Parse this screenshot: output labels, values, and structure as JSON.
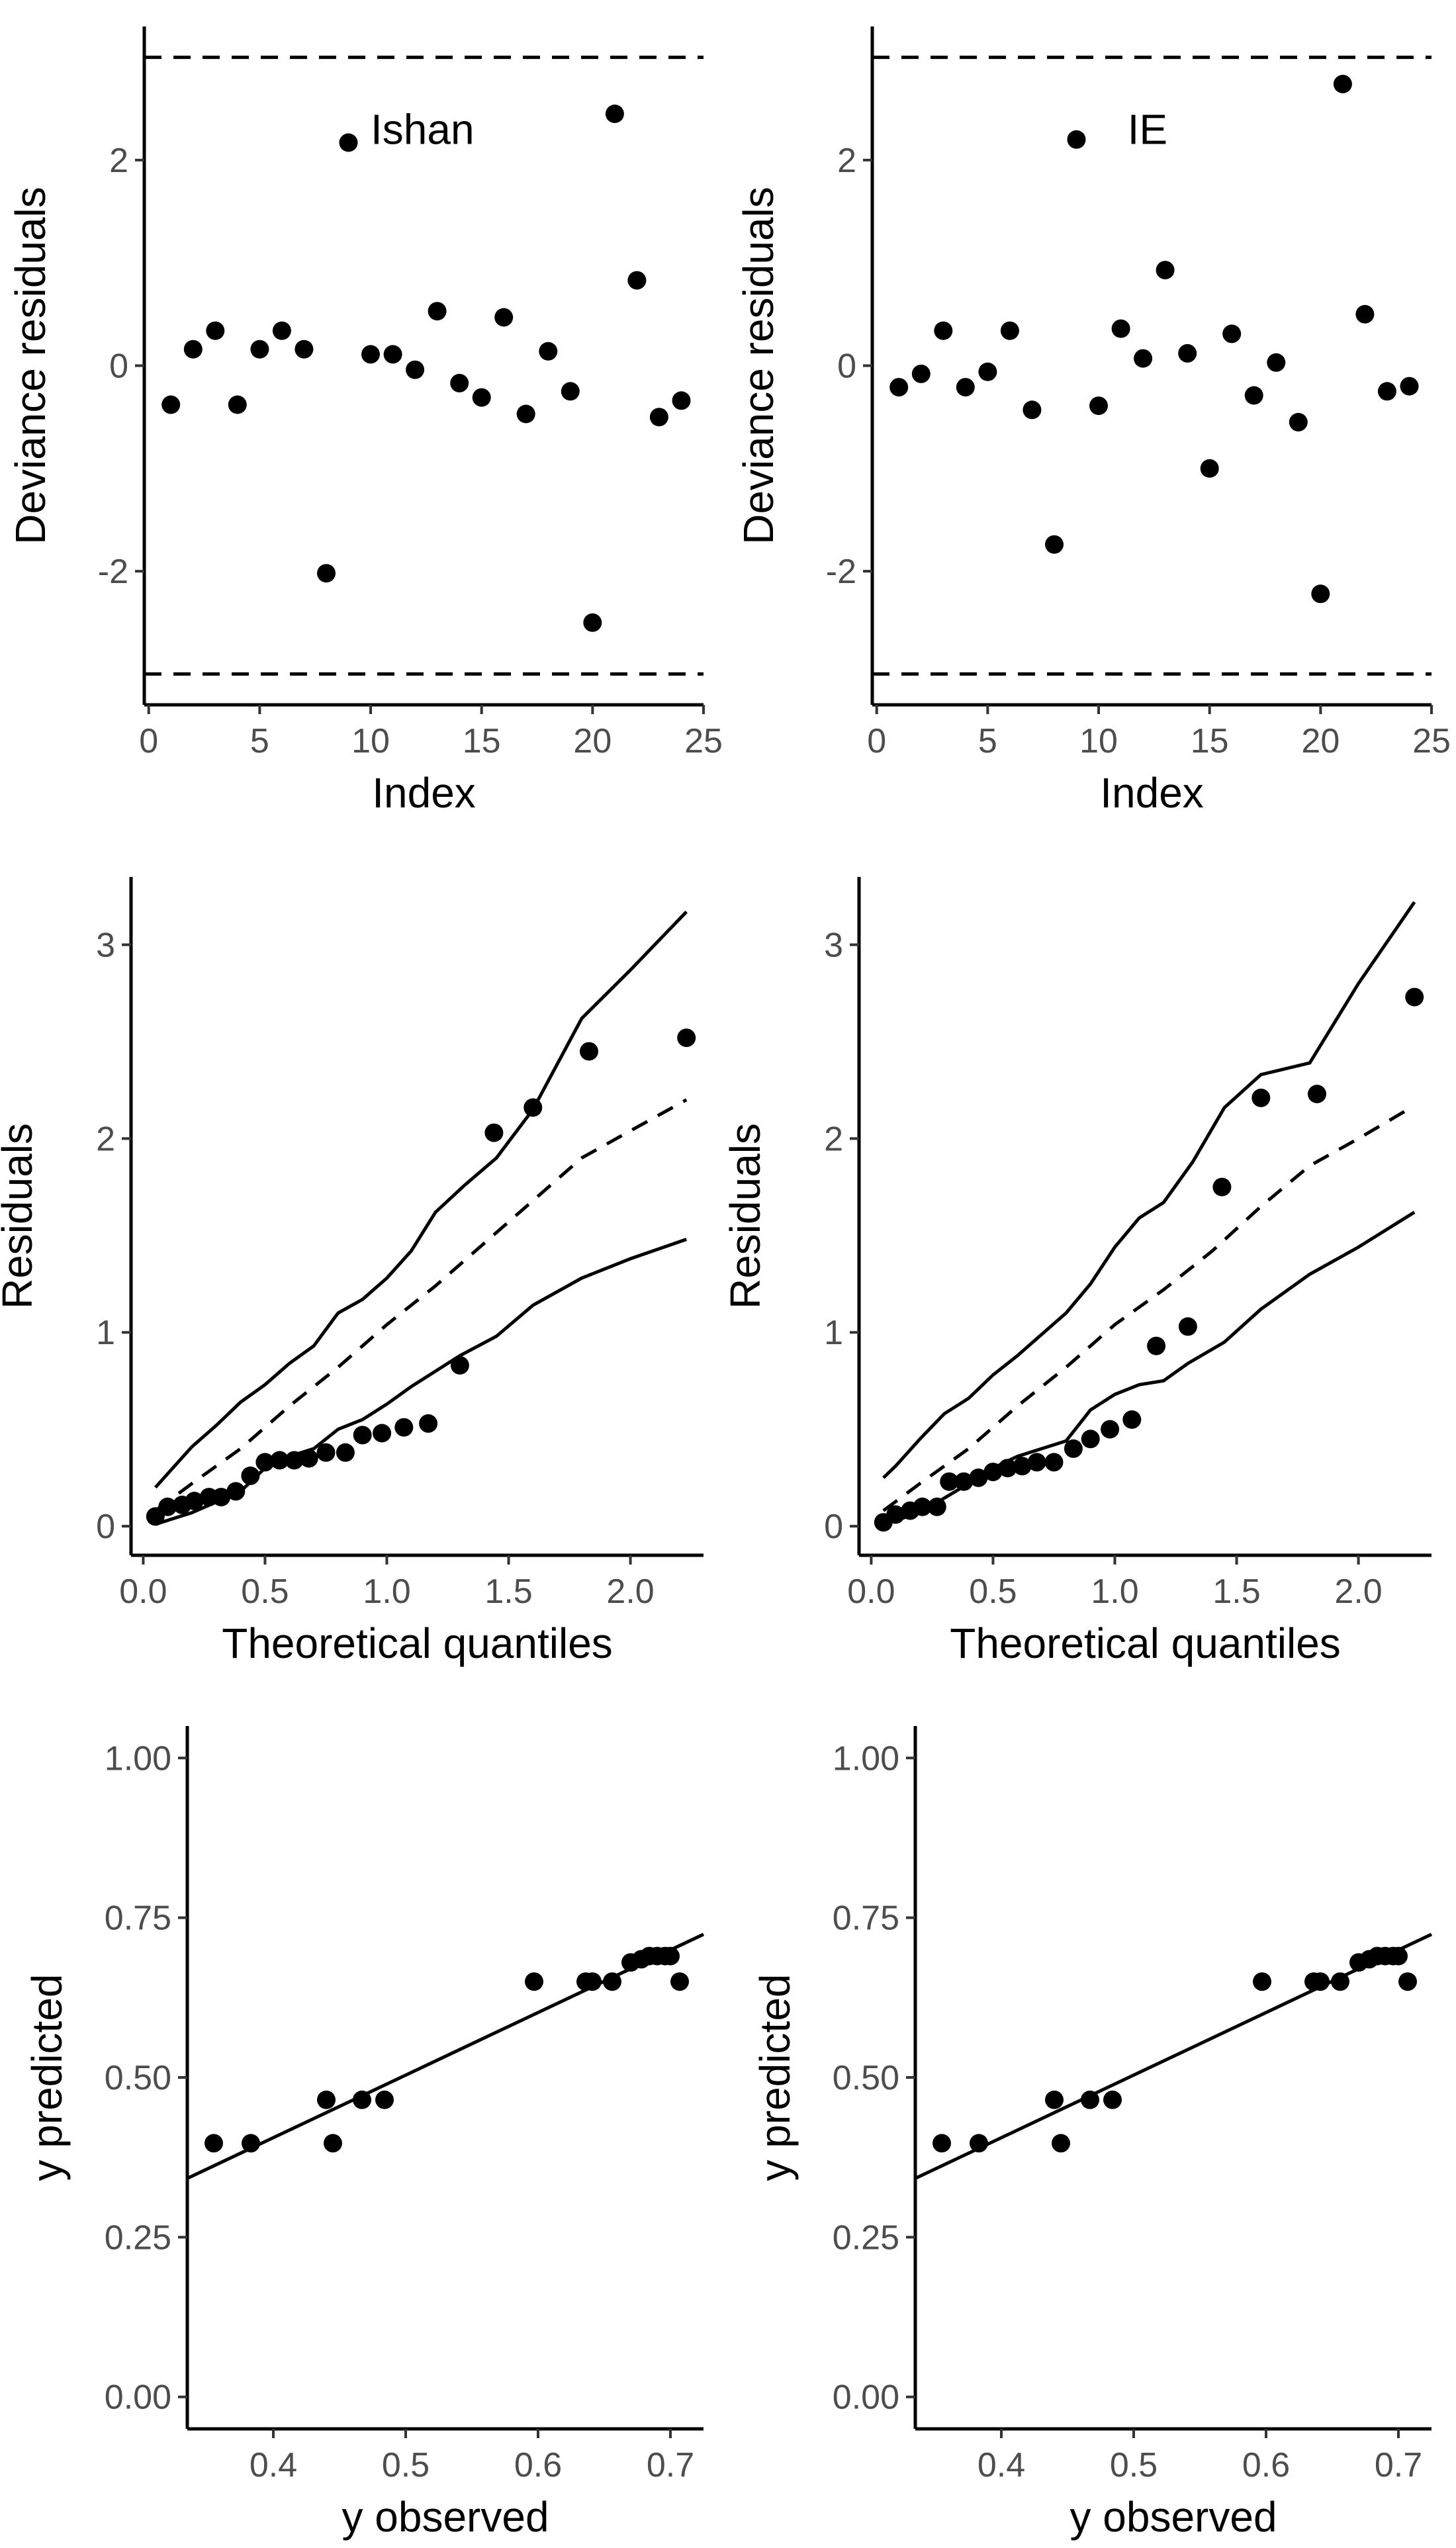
{
  "chart_data": [
    {
      "id": "p1",
      "type": "scatter",
      "xlabel": "Index",
      "ylabel": "Deviance residuals",
      "xlim": [
        -0.2,
        25
      ],
      "ylim": [
        -3.3,
        3.3
      ],
      "xticks": [
        0,
        5,
        10,
        15,
        20,
        25
      ],
      "yticks": [
        -2,
        0,
        2
      ],
      "hlines": [
        3,
        -3
      ],
      "annotation": {
        "text": "Ishan",
        "x": 10,
        "y": 2.3
      },
      "points": [
        [
          1,
          -0.38
        ],
        [
          2,
          0.16
        ],
        [
          3,
          0.34
        ],
        [
          4,
          -0.38
        ],
        [
          5,
          0.16
        ],
        [
          6,
          0.34
        ],
        [
          7,
          0.16
        ],
        [
          8,
          -2.02
        ],
        [
          9,
          2.17
        ],
        [
          10,
          0.11
        ],
        [
          11,
          0.11
        ],
        [
          12,
          -0.04
        ],
        [
          13,
          0.53
        ],
        [
          14,
          -0.17
        ],
        [
          15,
          -0.31
        ],
        [
          16,
          0.47
        ],
        [
          17,
          -0.47
        ],
        [
          18,
          0.14
        ],
        [
          19,
          -0.25
        ],
        [
          20,
          -2.5
        ],
        [
          21,
          2.45
        ],
        [
          22,
          0.83
        ],
        [
          23,
          -0.5
        ],
        [
          24,
          -0.34
        ]
      ]
    },
    {
      "id": "p2",
      "type": "scatter",
      "xlabel": "Index",
      "ylabel": "Deviance residuals",
      "xlim": [
        -0.2,
        25
      ],
      "ylim": [
        -3.3,
        3.3
      ],
      "xticks": [
        0,
        5,
        10,
        15,
        20,
        25
      ],
      "yticks": [
        -2,
        0,
        2
      ],
      "hlines": [
        3,
        -3
      ],
      "annotation": {
        "text": "IE",
        "x": 11.3,
        "y": 2.3
      },
      "points": [
        [
          1,
          -0.21
        ],
        [
          2,
          -0.08
        ],
        [
          3,
          0.34
        ],
        [
          4,
          -0.21
        ],
        [
          5,
          -0.06
        ],
        [
          6,
          0.34
        ],
        [
          7,
          -0.43
        ],
        [
          8,
          -1.74
        ],
        [
          9,
          2.2
        ],
        [
          10,
          -0.39
        ],
        [
          11,
          0.36
        ],
        [
          12,
          0.07
        ],
        [
          13,
          0.93
        ],
        [
          14,
          0.12
        ],
        [
          15,
          -1.0
        ],
        [
          16,
          0.31
        ],
        [
          17,
          -0.29
        ],
        [
          18,
          0.03
        ],
        [
          19,
          -0.55
        ],
        [
          20,
          -2.22
        ],
        [
          21,
          2.74
        ],
        [
          22,
          0.5
        ],
        [
          23,
          -0.25
        ],
        [
          24,
          -0.2
        ]
      ]
    },
    {
      "id": "p3",
      "type": "scatter",
      "xlabel": "Theoretical quantiles",
      "ylabel": "Residuals",
      "xlim": [
        -0.05,
        2.3
      ],
      "ylim": [
        -0.15,
        3.35
      ],
      "xticks": [
        0.0,
        0.5,
        1.0,
        1.5,
        2.0
      ],
      "yticks": [
        0,
        1,
        2,
        3
      ],
      "points": [
        [
          0.05,
          0.05
        ],
        [
          0.1,
          0.1
        ],
        [
          0.16,
          0.11
        ],
        [
          0.21,
          0.13
        ],
        [
          0.27,
          0.15
        ],
        [
          0.32,
          0.15
        ],
        [
          0.38,
          0.18
        ],
        [
          0.44,
          0.26
        ],
        [
          0.5,
          0.33
        ],
        [
          0.56,
          0.34
        ],
        [
          0.62,
          0.34
        ],
        [
          0.68,
          0.35
        ],
        [
          0.75,
          0.38
        ],
        [
          0.83,
          0.38
        ],
        [
          0.9,
          0.47
        ],
        [
          0.98,
          0.48
        ],
        [
          1.07,
          0.51
        ],
        [
          1.17,
          0.53
        ],
        [
          1.3,
          0.83
        ],
        [
          1.44,
          2.03
        ],
        [
          1.6,
          2.16
        ],
        [
          1.83,
          2.45
        ],
        [
          2.23,
          2.52
        ]
      ],
      "lines": [
        {
          "name": "upper",
          "style": "solid",
          "points": [
            [
              0.05,
              0.2
            ],
            [
              0.1,
              0.27
            ],
            [
              0.2,
              0.41
            ],
            [
              0.3,
              0.52
            ],
            [
              0.4,
              0.64
            ],
            [
              0.5,
              0.73
            ],
            [
              0.6,
              0.84
            ],
            [
              0.7,
              0.93
            ],
            [
              0.8,
              1.1
            ],
            [
              0.9,
              1.17
            ],
            [
              1.0,
              1.28
            ],
            [
              1.1,
              1.42
            ],
            [
              1.2,
              1.62
            ],
            [
              1.32,
              1.76
            ],
            [
              1.45,
              1.9
            ],
            [
              1.6,
              2.15
            ],
            [
              1.8,
              2.62
            ],
            [
              2.0,
              2.87
            ],
            [
              2.23,
              3.17
            ]
          ]
        },
        {
          "name": "median",
          "style": "dashed",
          "points": [
            [
              0.05,
              0.08
            ],
            [
              0.2,
              0.22
            ],
            [
              0.4,
              0.4
            ],
            [
              0.6,
              0.62
            ],
            [
              0.8,
              0.82
            ],
            [
              1.0,
              1.04
            ],
            [
              1.2,
              1.24
            ],
            [
              1.4,
              1.46
            ],
            [
              1.6,
              1.68
            ],
            [
              1.8,
              1.9
            ],
            [
              2.0,
              2.04
            ],
            [
              2.23,
              2.2
            ]
          ]
        },
        {
          "name": "lower",
          "style": "solid",
          "points": [
            [
              0.05,
              0.01
            ],
            [
              0.2,
              0.07
            ],
            [
              0.4,
              0.18
            ],
            [
              0.5,
              0.3
            ],
            [
              0.6,
              0.36
            ],
            [
              0.7,
              0.4
            ],
            [
              0.8,
              0.5
            ],
            [
              0.9,
              0.55
            ],
            [
              1.0,
              0.63
            ],
            [
              1.1,
              0.72
            ],
            [
              1.2,
              0.8
            ],
            [
              1.3,
              0.88
            ],
            [
              1.45,
              0.98
            ],
            [
              1.6,
              1.14
            ],
            [
              1.8,
              1.28
            ],
            [
              2.0,
              1.38
            ],
            [
              2.23,
              1.48
            ]
          ]
        }
      ]
    },
    {
      "id": "p4",
      "type": "scatter",
      "xlabel": "Theoretical quantiles",
      "ylabel": "Residuals",
      "xlim": [
        -0.05,
        2.3
      ],
      "ylim": [
        -0.15,
        3.35
      ],
      "xticks": [
        0.0,
        0.5,
        1.0,
        1.5,
        2.0
      ],
      "yticks": [
        0,
        1,
        2,
        3
      ],
      "points": [
        [
          0.05,
          0.02
        ],
        [
          0.1,
          0.06
        ],
        [
          0.16,
          0.08
        ],
        [
          0.21,
          0.1
        ],
        [
          0.27,
          0.1
        ],
        [
          0.32,
          0.23
        ],
        [
          0.38,
          0.23
        ],
        [
          0.44,
          0.25
        ],
        [
          0.5,
          0.28
        ],
        [
          0.56,
          0.3
        ],
        [
          0.62,
          0.31
        ],
        [
          0.68,
          0.33
        ],
        [
          0.75,
          0.33
        ],
        [
          0.83,
          0.4
        ],
        [
          0.9,
          0.45
        ],
        [
          0.98,
          0.5
        ],
        [
          1.07,
          0.55
        ],
        [
          1.17,
          0.93
        ],
        [
          1.3,
          1.03
        ],
        [
          1.44,
          1.75
        ],
        [
          1.6,
          2.21
        ],
        [
          1.83,
          2.23
        ],
        [
          2.23,
          2.73
        ]
      ],
      "lines": [
        {
          "name": "upper",
          "style": "solid",
          "points": [
            [
              0.05,
              0.25
            ],
            [
              0.1,
              0.31
            ],
            [
              0.2,
              0.45
            ],
            [
              0.3,
              0.58
            ],
            [
              0.4,
              0.66
            ],
            [
              0.5,
              0.78
            ],
            [
              0.6,
              0.88
            ],
            [
              0.7,
              0.99
            ],
            [
              0.8,
              1.1
            ],
            [
              0.9,
              1.25
            ],
            [
              1.0,
              1.44
            ],
            [
              1.1,
              1.59
            ],
            [
              1.2,
              1.67
            ],
            [
              1.32,
              1.88
            ],
            [
              1.45,
              2.16
            ],
            [
              1.6,
              2.33
            ],
            [
              1.8,
              2.39
            ],
            [
              2.0,
              2.8
            ],
            [
              2.23,
              3.22
            ]
          ]
        },
        {
          "name": "median",
          "style": "dashed",
          "points": [
            [
              0.05,
              0.08
            ],
            [
              0.2,
              0.22
            ],
            [
              0.4,
              0.4
            ],
            [
              0.6,
              0.62
            ],
            [
              0.8,
              0.82
            ],
            [
              1.0,
              1.04
            ],
            [
              1.2,
              1.22
            ],
            [
              1.4,
              1.42
            ],
            [
              1.6,
              1.65
            ],
            [
              1.8,
              1.86
            ],
            [
              2.0,
              2.0
            ],
            [
              2.23,
              2.17
            ]
          ]
        },
        {
          "name": "lower",
          "style": "solid",
          "points": [
            [
              0.05,
              0.01
            ],
            [
              0.2,
              0.07
            ],
            [
              0.4,
              0.22
            ],
            [
              0.5,
              0.3
            ],
            [
              0.6,
              0.36
            ],
            [
              0.7,
              0.4
            ],
            [
              0.8,
              0.44
            ],
            [
              0.9,
              0.6
            ],
            [
              1.0,
              0.68
            ],
            [
              1.1,
              0.73
            ],
            [
              1.2,
              0.75
            ],
            [
              1.3,
              0.84
            ],
            [
              1.45,
              0.95
            ],
            [
              1.6,
              1.12
            ],
            [
              1.8,
              1.3
            ],
            [
              2.0,
              1.44
            ],
            [
              2.23,
              1.62
            ]
          ]
        }
      ]
    },
    {
      "id": "p5",
      "type": "scatter",
      "xlabel": "y observed",
      "ylabel": "y predicted",
      "xlim": [
        0.335,
        0.725
      ],
      "ylim": [
        -0.05,
        1.05
      ],
      "xticks": [
        0.4,
        0.5,
        0.6,
        0.7
      ],
      "yticks": [
        0.0,
        0.25,
        0.5,
        0.75,
        1.0
      ],
      "points": [
        [
          0.355,
          0.397
        ],
        [
          0.383,
          0.397
        ],
        [
          0.44,
          0.465
        ],
        [
          0.445,
          0.397
        ],
        [
          0.467,
          0.465
        ],
        [
          0.484,
          0.465
        ],
        [
          0.597,
          0.65
        ],
        [
          0.636,
          0.65
        ],
        [
          0.641,
          0.65
        ],
        [
          0.656,
          0.65
        ],
        [
          0.67,
          0.68
        ],
        [
          0.678,
          0.685
        ],
        [
          0.684,
          0.69
        ],
        [
          0.69,
          0.69
        ],
        [
          0.696,
          0.69
        ],
        [
          0.7,
          0.69
        ],
        [
          0.707,
          0.65
        ]
      ],
      "lines": [
        {
          "name": "fit",
          "style": "solid",
          "points": [
            [
              0.335,
              0.342
            ],
            [
              0.725,
              0.724
            ]
          ]
        }
      ]
    },
    {
      "id": "p6",
      "type": "scatter",
      "xlabel": "y observed",
      "ylabel": "y predicted",
      "xlim": [
        0.335,
        0.725
      ],
      "ylim": [
        -0.05,
        1.05
      ],
      "xticks": [
        0.4,
        0.5,
        0.6,
        0.7
      ],
      "yticks": [
        0.0,
        0.25,
        0.5,
        0.75,
        1.0
      ],
      "points": [
        [
          0.355,
          0.397
        ],
        [
          0.383,
          0.397
        ],
        [
          0.44,
          0.465
        ],
        [
          0.445,
          0.397
        ],
        [
          0.467,
          0.465
        ],
        [
          0.484,
          0.465
        ],
        [
          0.597,
          0.65
        ],
        [
          0.636,
          0.65
        ],
        [
          0.641,
          0.65
        ],
        [
          0.656,
          0.65
        ],
        [
          0.67,
          0.68
        ],
        [
          0.678,
          0.685
        ],
        [
          0.684,
          0.69
        ],
        [
          0.69,
          0.69
        ],
        [
          0.696,
          0.69
        ],
        [
          0.7,
          0.69
        ],
        [
          0.707,
          0.65
        ]
      ],
      "lines": [
        {
          "name": "fit",
          "style": "solid",
          "points": [
            [
              0.335,
              0.342
            ],
            [
              0.725,
              0.724
            ]
          ]
        }
      ]
    }
  ]
}
